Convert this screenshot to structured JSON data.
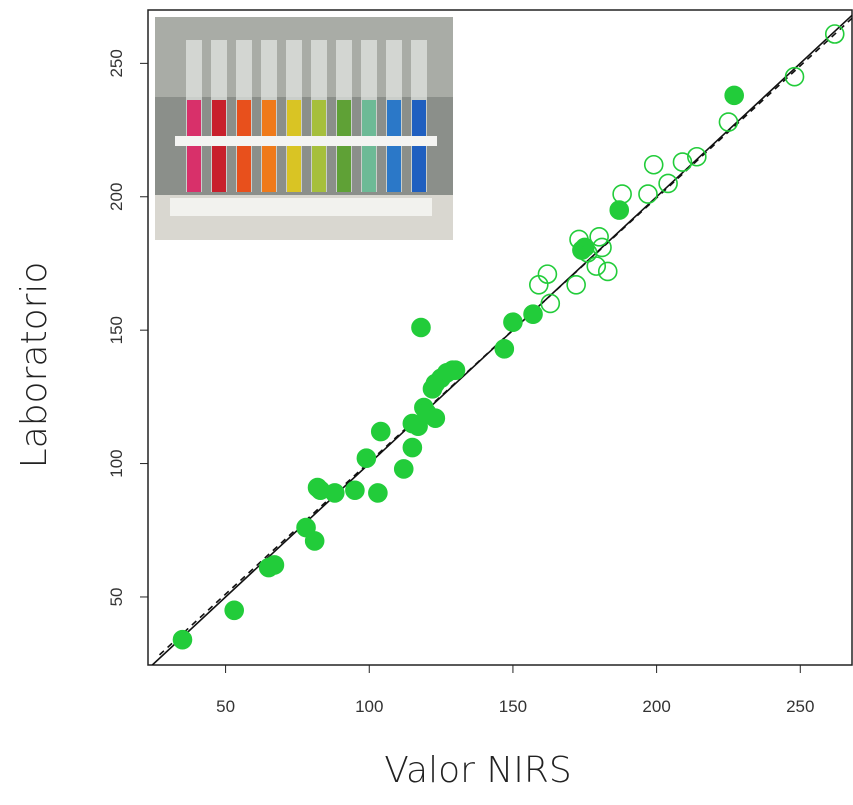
{
  "chart_data": {
    "type": "scatter",
    "xlabel": "Valor NIRS",
    "ylabel": "Laboratorio",
    "xlim": [
      23,
      268
    ],
    "ylim": [
      24.5,
      270
    ],
    "xticks": [
      50,
      100,
      150,
      200,
      250
    ],
    "yticks": [
      50,
      100,
      150,
      200,
      250
    ],
    "series": [
      {
        "color": "#22cc3a",
        "filled": true,
        "x": [
          35,
          53,
          65,
          67,
          78,
          81,
          82,
          83,
          88,
          95,
          99,
          103,
          104,
          112,
          115,
          115,
          117,
          119,
          120,
          122,
          123,
          123,
          125,
          127,
          129,
          130,
          118,
          147,
          150,
          157,
          174,
          175,
          187,
          227
        ],
        "values": [
          34,
          45,
          61,
          62,
          76,
          71,
          91,
          90,
          89,
          90,
          102,
          89,
          112,
          98,
          106,
          115,
          114,
          121,
          119,
          128,
          130,
          117,
          132,
          134,
          135,
          135,
          151,
          143,
          153,
          156,
          180,
          181,
          195,
          238
        ]
      },
      {
        "color": "#22cc3a",
        "filled": false,
        "x": [
          262,
          248,
          225,
          214,
          209,
          204,
          199,
          197,
          188,
          180,
          173,
          172,
          163,
          162,
          159,
          179,
          183,
          181,
          176
        ],
        "values": [
          261,
          245,
          228,
          215,
          213,
          205,
          212,
          201,
          201,
          185,
          184,
          167,
          160,
          171,
          167,
          174,
          172,
          181,
          179
        ]
      }
    ],
    "lines": [
      {
        "x": [
          24.5,
          268
        ],
        "values": [
          24.5,
          268
        ],
        "dashed": false
      },
      {
        "x": [
          27,
          268
        ],
        "values": [
          28.3,
          266.9
        ],
        "dashed": true
      }
    ]
  }
}
